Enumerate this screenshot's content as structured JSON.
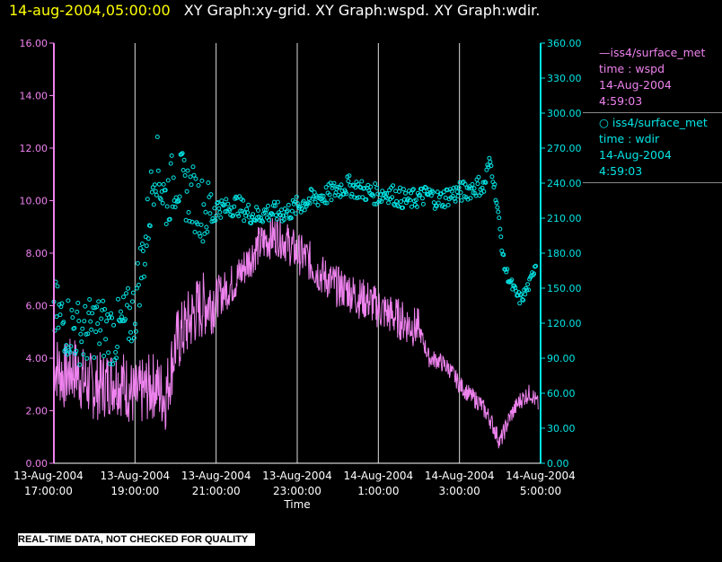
{
  "header": {
    "date": "14-aug-2004,05:00:00",
    "graphs": "XY Graph:xy-grid.  XY Graph:wspd.  XY Graph:wdir."
  },
  "legend": {
    "wspd": {
      "line1": "—iss4/surface_met",
      "line2": "time : wspd",
      "line3": "14-Aug-2004",
      "line4": "4:59:03",
      "color": "#ee82ee"
    },
    "wdir": {
      "line1": "○ iss4/surface_met",
      "line2": "time : wdir",
      "line3": "14-Aug-2004",
      "line4": "4:59:03",
      "color": "#00e5e5"
    }
  },
  "disclaimer": "REAL-TIME DATA, NOT CHECKED FOR QUALITY",
  "chart_data": {
    "type": "line",
    "xlabel": "Time",
    "xlim": [
      17.0,
      29.0
    ],
    "x_ticks": [
      {
        "x": 17,
        "date": "13-Aug-2004",
        "time": "17:00:00"
      },
      {
        "x": 19,
        "date": "13-Aug-2004",
        "time": "19:00:00"
      },
      {
        "x": 21,
        "date": "13-Aug-2004",
        "time": "21:00:00"
      },
      {
        "x": 23,
        "date": "13-Aug-2004",
        "time": "23:00:00"
      },
      {
        "x": 25,
        "date": "14-Aug-2004",
        "time": "1:00:00"
      },
      {
        "x": 27,
        "date": "14-Aug-2004",
        "time": "3:00:00"
      },
      {
        "x": 29,
        "date": "14-Aug-2004",
        "time": "5:00:00"
      }
    ],
    "y_left": {
      "lim": [
        0,
        16
      ],
      "ticks": [
        "0.00",
        "2.00",
        "4.00",
        "6.00",
        "8.00",
        "10.00",
        "12.00",
        "14.00",
        "16.00"
      ],
      "color": "#ee82ee"
    },
    "y_right": {
      "lim": [
        0,
        360
      ],
      "ticks": [
        "0.00",
        "30.00",
        "60.00",
        "90.00",
        "120.00",
        "150.00",
        "180.00",
        "210.00",
        "240.00",
        "270.00",
        "300.00",
        "330.00",
        "360.00"
      ],
      "color": "#00e5e5"
    },
    "grid": "vertical",
    "series": [
      {
        "name": "wspd",
        "axis": "left",
        "style": "line",
        "color": "#ee82ee",
        "x": [
          17.0,
          17.25,
          17.5,
          17.75,
          18.0,
          18.25,
          18.5,
          18.75,
          19.0,
          19.25,
          19.5,
          19.75,
          20.0,
          20.25,
          20.5,
          20.75,
          21.0,
          21.25,
          21.5,
          21.75,
          22.0,
          22.25,
          22.5,
          22.75,
          23.0,
          23.25,
          23.5,
          23.75,
          24.0,
          24.25,
          24.5,
          24.75,
          25.0,
          25.25,
          25.5,
          25.75,
          26.0,
          26.25,
          26.5,
          26.75,
          27.0,
          27.25,
          27.5,
          27.75,
          28.0,
          28.25,
          28.5,
          28.75,
          28.95
        ],
        "y": [
          3.8,
          3.3,
          3.6,
          3.1,
          2.9,
          3.0,
          3.2,
          3.0,
          2.5,
          2.8,
          3.0,
          2.5,
          4.5,
          5.2,
          5.8,
          6.1,
          6.3,
          6.6,
          7.0,
          7.6,
          8.2,
          8.5,
          8.7,
          8.4,
          8.0,
          7.8,
          7.3,
          7.0,
          6.7,
          6.6,
          6.3,
          6.2,
          5.9,
          5.7,
          5.5,
          5.3,
          5.1,
          4.0,
          3.9,
          3.6,
          3.0,
          2.6,
          2.3,
          1.7,
          0.8,
          1.8,
          2.4,
          2.7,
          2.2
        ]
      },
      {
        "name": "wdir",
        "axis": "right",
        "style": "scatter",
        "color": "#00e5e5",
        "x": [
          17.0,
          17.25,
          17.5,
          17.75,
          18.0,
          18.25,
          18.5,
          18.75,
          19.0,
          19.1,
          19.25,
          19.4,
          19.5,
          19.75,
          20.0,
          20.25,
          20.5,
          20.75,
          21.0,
          21.25,
          21.5,
          21.75,
          22.0,
          22.25,
          22.5,
          22.75,
          23.0,
          23.25,
          23.5,
          23.75,
          24.0,
          24.25,
          24.5,
          24.75,
          25.0,
          25.25,
          25.5,
          25.75,
          26.0,
          26.25,
          26.5,
          26.75,
          27.0,
          27.25,
          27.5,
          27.6,
          27.75,
          27.85,
          27.95,
          28.1,
          28.25,
          28.4,
          28.5,
          28.6,
          28.75,
          28.9
        ],
        "y": [
          130,
          120,
          115,
          110,
          118,
          115,
          110,
          120,
          130,
          160,
          185,
          230,
          260,
          225,
          245,
          235,
          225,
          215,
          220,
          218,
          222,
          215,
          212,
          215,
          215,
          215,
          220,
          225,
          228,
          230,
          235,
          238,
          235,
          232,
          230,
          232,
          228,
          225,
          228,
          230,
          225,
          230,
          232,
          235,
          238,
          235,
          260,
          240,
          215,
          170,
          155,
          145,
          140,
          145,
          155,
          175
        ]
      }
    ]
  }
}
